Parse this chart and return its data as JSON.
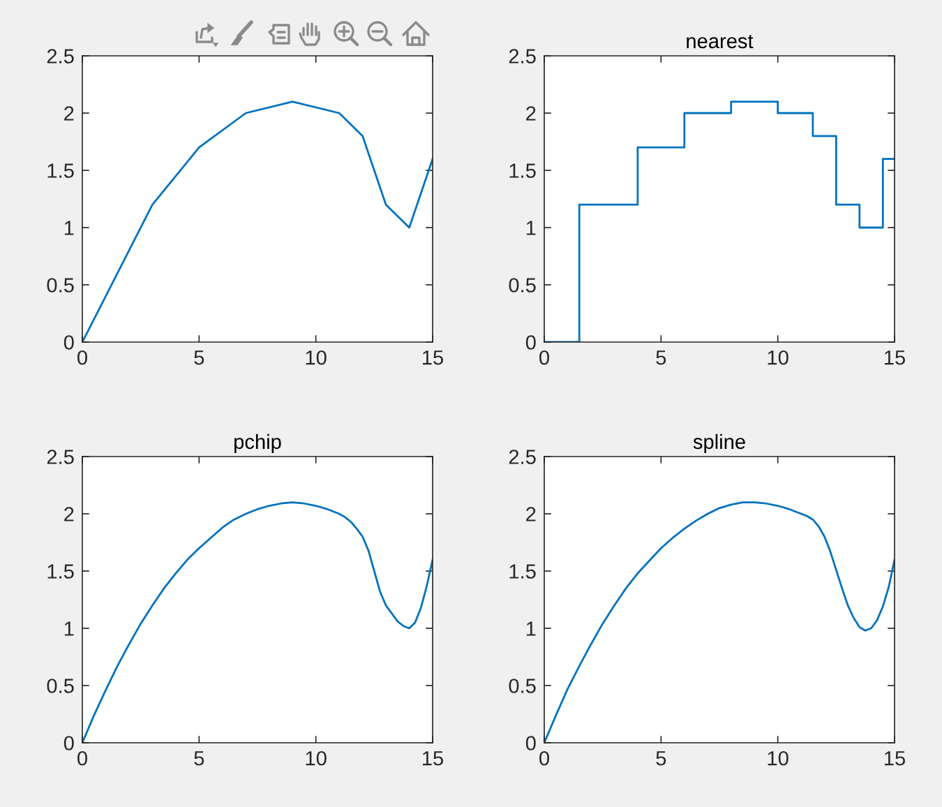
{
  "chart_data": [
    {
      "type": "line",
      "x": [
        0,
        3,
        5,
        7,
        9,
        11,
        12,
        13,
        14,
        15
      ],
      "values": [
        0,
        1.2,
        1.7,
        2.0,
        2.1,
        2.0,
        1.8,
        1.2,
        1.0,
        1.6
      ],
      "color": "#0072bd",
      "xlim": [
        0,
        15
      ],
      "ylim": [
        0,
        2.5
      ],
      "xticks": [
        0,
        5,
        10,
        15
      ],
      "yticks": [
        0,
        0.5,
        1,
        1.5,
        2,
        2.5
      ]
    },
    {
      "type": "step",
      "title": "nearest",
      "x": [
        0,
        3,
        5,
        7,
        9,
        11,
        12,
        13,
        14,
        15
      ],
      "values": [
        0,
        1.2,
        1.7,
        2.0,
        2.1,
        2.0,
        1.8,
        1.2,
        1.0,
        1.6
      ],
      "color": "#0072bd",
      "xlim": [
        0,
        15
      ],
      "ylim": [
        0,
        2.5
      ],
      "xticks": [
        0,
        5,
        10,
        15
      ],
      "yticks": [
        0,
        0.5,
        1,
        1.5,
        2,
        2.5
      ]
    },
    {
      "type": "line",
      "title": "pchip",
      "x": [
        0,
        0.5,
        1,
        1.5,
        2,
        2.5,
        3,
        3.5,
        4,
        4.5,
        5,
        5.5,
        6,
        6.5,
        7,
        7.5,
        8,
        8.5,
        9,
        9.5,
        10,
        10.5,
        11,
        11.25,
        11.5,
        11.75,
        12,
        12.25,
        12.5,
        12.75,
        13,
        13.25,
        13.5,
        13.75,
        14,
        14.25,
        14.5,
        14.75,
        15
      ],
      "values": [
        0,
        0.24,
        0.46,
        0.67,
        0.86,
        1.04,
        1.2,
        1.35,
        1.48,
        1.6,
        1.7,
        1.79,
        1.88,
        1.95,
        2.0,
        2.04,
        2.07,
        2.09,
        2.1,
        2.09,
        2.07,
        2.04,
        2.0,
        1.97,
        1.93,
        1.87,
        1.8,
        1.68,
        1.5,
        1.32,
        1.2,
        1.13,
        1.06,
        1.02,
        1.0,
        1.05,
        1.18,
        1.37,
        1.6
      ],
      "color": "#0072bd",
      "xlim": [
        0,
        15
      ],
      "ylim": [
        0,
        2.5
      ],
      "xticks": [
        0,
        5,
        10,
        15
      ],
      "yticks": [
        0,
        0.5,
        1,
        1.5,
        2,
        2.5
      ]
    },
    {
      "type": "line",
      "title": "spline",
      "x": [
        0,
        0.5,
        1,
        1.5,
        2,
        2.5,
        3,
        3.5,
        4,
        4.5,
        5,
        5.5,
        6,
        6.5,
        7,
        7.5,
        8,
        8.5,
        9,
        9.5,
        10,
        10.5,
        11,
        11.25,
        11.5,
        11.75,
        12,
        12.25,
        12.5,
        12.75,
        13,
        13.25,
        13.5,
        13.75,
        14,
        14.25,
        14.5,
        14.75,
        15
      ],
      "values": [
        0,
        0.24,
        0.47,
        0.67,
        0.86,
        1.04,
        1.2,
        1.35,
        1.48,
        1.59,
        1.7,
        1.79,
        1.87,
        1.94,
        2.0,
        2.05,
        2.08,
        2.1,
        2.1,
        2.09,
        2.07,
        2.04,
        2.0,
        1.98,
        1.95,
        1.89,
        1.8,
        1.67,
        1.51,
        1.35,
        1.2,
        1.09,
        1.01,
        0.98,
        1.0,
        1.07,
        1.19,
        1.36,
        1.6
      ],
      "color": "#0072bd",
      "xlim": [
        0,
        15
      ],
      "ylim": [
        0,
        2.5
      ],
      "xticks": [
        0,
        5,
        10,
        15
      ],
      "yticks": [
        0,
        0.5,
        1,
        1.5,
        2,
        2.5
      ]
    }
  ]
}
